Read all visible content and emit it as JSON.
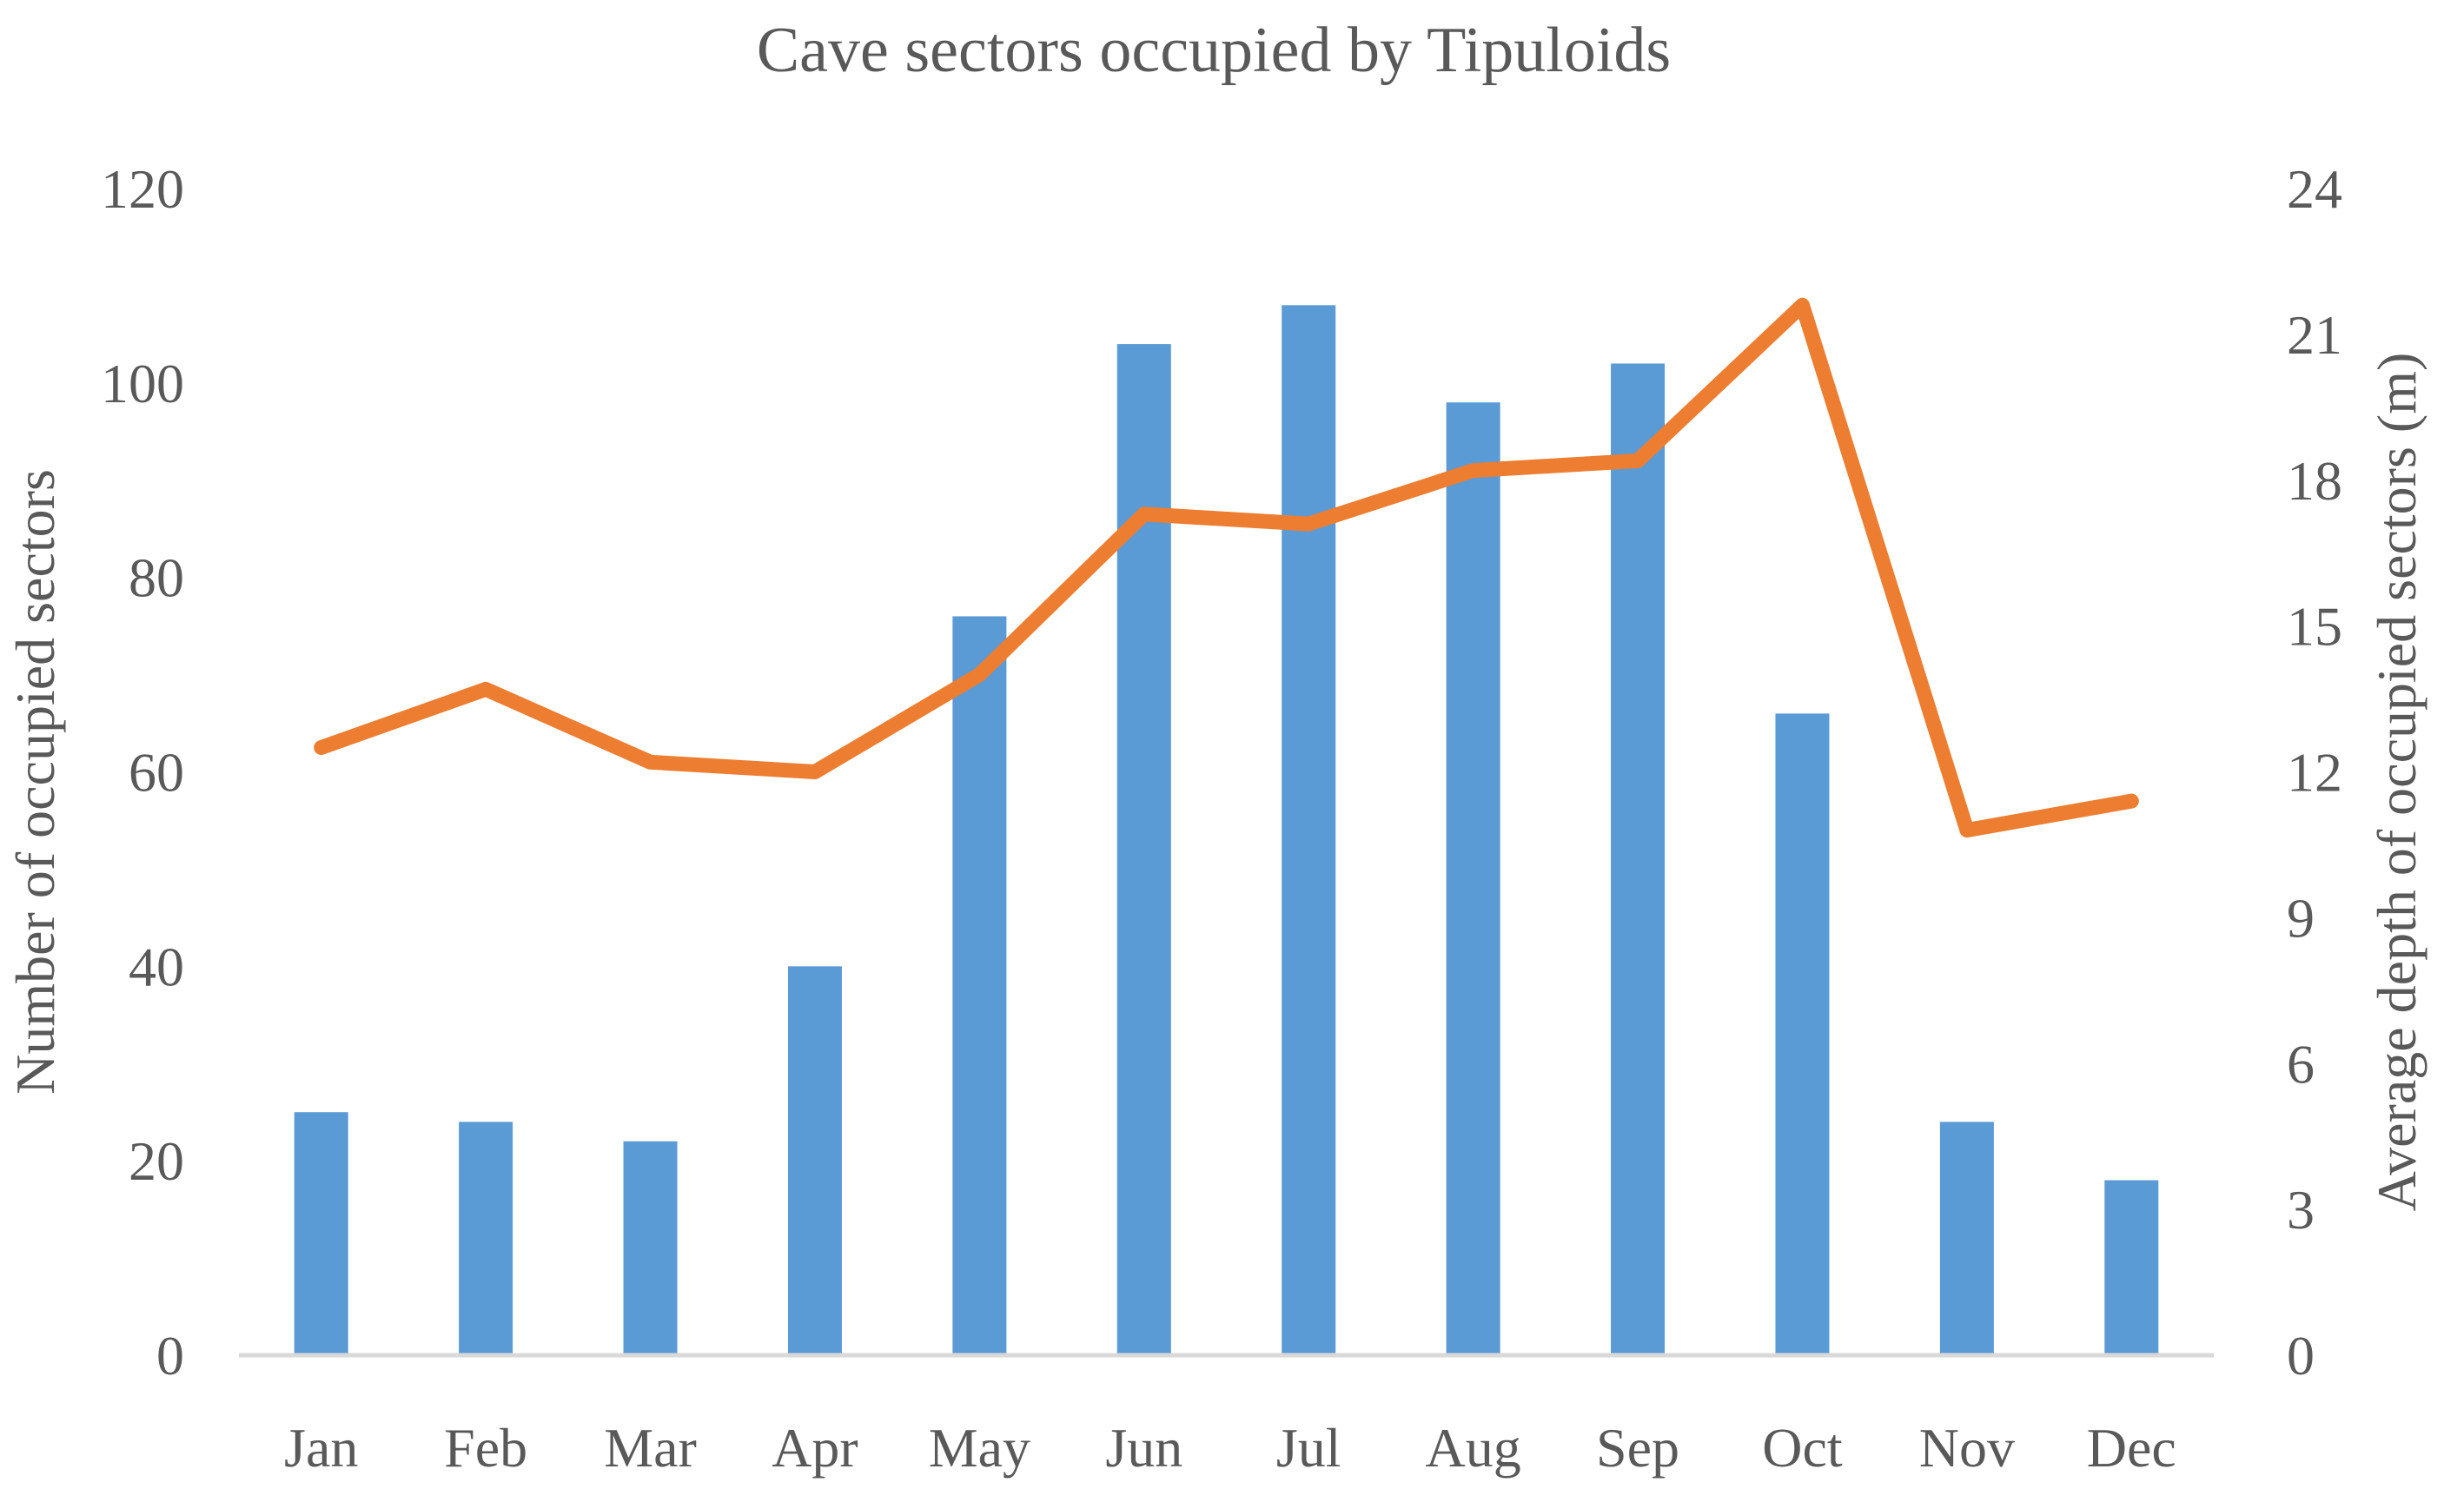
{
  "chart_data": {
    "type": "bar+line",
    "title": "Cave sectors occupied by Tipuloids",
    "categories": [
      "Jan",
      "Feb",
      "Mar",
      "Apr",
      "May",
      "Jun",
      "Jul",
      "Aug",
      "Sep",
      "Oct",
      "Nov",
      "Dec"
    ],
    "y_left": {
      "label": "Number of occupied sectors",
      "range": [
        0,
        120
      ],
      "ticks": [
        0,
        20,
        40,
        60,
        80,
        100,
        120
      ]
    },
    "y_right": {
      "label": "Average depth of occupied sectors (m)",
      "range": [
        0,
        24
      ],
      "ticks": [
        0,
        3,
        6,
        9,
        12,
        15,
        18,
        21,
        24
      ]
    },
    "series": [
      {
        "type": "bar",
        "axis": "left",
        "color": "#5b9bd5",
        "values": [
          25,
          24,
          22,
          40,
          76,
          104,
          108,
          98,
          102,
          66,
          24,
          18
        ]
      },
      {
        "type": "line",
        "axis": "right",
        "color": "#ed7d31",
        "values": [
          12.5,
          13.7,
          12.2,
          12.0,
          14.0,
          17.3,
          17.1,
          18.2,
          18.4,
          21.6,
          10.8,
          11.4
        ]
      }
    ],
    "grid": false,
    "legend": "none"
  }
}
